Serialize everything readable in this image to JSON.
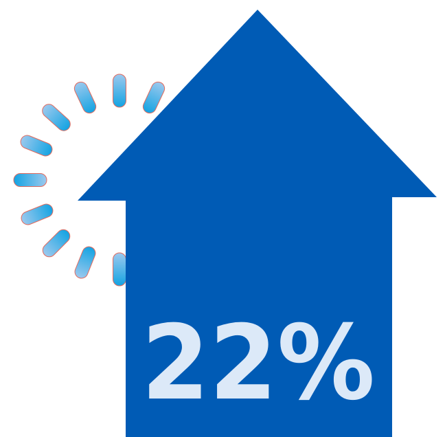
{
  "percentage": "22%",
  "colors": {
    "arrow": "#005BB5",
    "text": "#DCE9F8",
    "spinner_light": "#9CC9EE",
    "spinner_dark": "#13A3E2",
    "spinner_outline": "#E36A5C"
  },
  "icons": {
    "arrow": "up-arrow-icon",
    "spinner": "loading-spinner-icon"
  }
}
